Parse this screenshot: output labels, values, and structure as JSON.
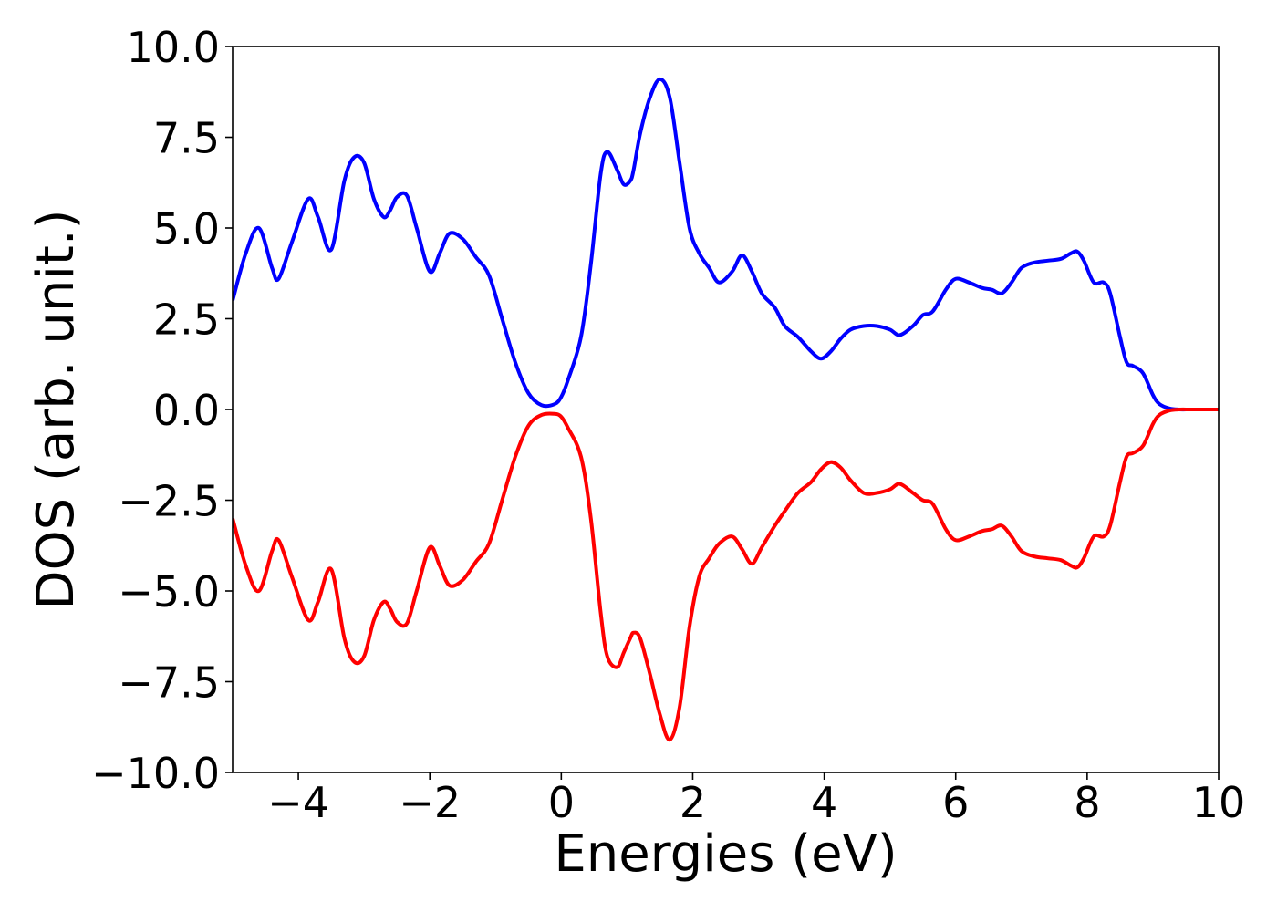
{
  "chart_data": {
    "type": "line",
    "title": "",
    "xlabel": "Energies (eV)",
    "ylabel": "DOS (arb. unit.)",
    "xlim": [
      -5,
      10
    ],
    "ylim": [
      -10,
      10
    ],
    "grid": false,
    "xticks": [
      -4,
      -2,
      0,
      2,
      4,
      6,
      8,
      10
    ],
    "yticks": [
      10,
      7.5,
      5,
      2.5,
      0,
      -2.5,
      -5,
      -7.5,
      -10
    ],
    "xtick_labels": [
      "−4",
      "−2",
      "0",
      "2",
      "4",
      "6",
      "8",
      "10"
    ],
    "ytick_labels": [
      "10.0",
      "7.5",
      "5.0",
      "2.5",
      "0.0",
      "−2.5",
      "−5.0",
      "−7.5",
      "−10.0"
    ],
    "series": [
      {
        "color": "#0000ff",
        "x": [
          -5.0,
          -4.8,
          -4.6,
          -4.4,
          -4.3,
          -4.1,
          -3.85,
          -3.7,
          -3.5,
          -3.3,
          -3.15,
          -3.0,
          -2.85,
          -2.7,
          -2.6,
          -2.5,
          -2.35,
          -2.2,
          -2.0,
          -1.85,
          -1.7,
          -1.5,
          -1.3,
          -1.1,
          -0.9,
          -0.7,
          -0.5,
          -0.3,
          -0.1,
          0.0,
          0.1,
          0.3,
          0.45,
          0.6,
          0.7,
          0.85,
          0.95,
          1.05,
          1.1,
          1.2,
          1.35,
          1.5,
          1.65,
          1.8,
          1.95,
          2.1,
          2.25,
          2.4,
          2.6,
          2.75,
          2.9,
          3.05,
          3.25,
          3.4,
          3.6,
          3.8,
          3.95,
          4.1,
          4.25,
          4.4,
          4.6,
          4.8,
          5.0,
          5.15,
          5.35,
          5.5,
          5.65,
          5.85,
          6.0,
          6.2,
          6.4,
          6.55,
          6.7,
          6.85,
          7.0,
          7.2,
          7.4,
          7.6,
          7.75,
          7.85,
          7.95,
          8.1,
          8.25,
          8.35,
          8.5,
          8.6,
          8.7,
          8.85,
          9.0,
          9.1,
          9.25,
          9.4,
          9.6,
          10.0
        ],
        "y": [
          3.0,
          4.3,
          5.0,
          3.9,
          3.6,
          4.6,
          5.8,
          5.3,
          4.4,
          6.3,
          6.95,
          6.8,
          5.8,
          5.3,
          5.5,
          5.85,
          5.9,
          5.0,
          3.8,
          4.3,
          4.85,
          4.7,
          4.2,
          3.7,
          2.5,
          1.3,
          0.45,
          0.12,
          0.15,
          0.35,
          0.8,
          2.0,
          4.0,
          6.5,
          7.1,
          6.6,
          6.2,
          6.3,
          6.6,
          7.6,
          8.6,
          9.1,
          8.6,
          6.8,
          5.0,
          4.3,
          3.9,
          3.5,
          3.8,
          4.25,
          3.8,
          3.2,
          2.8,
          2.3,
          2.0,
          1.6,
          1.4,
          1.6,
          1.95,
          2.2,
          2.3,
          2.3,
          2.2,
          2.05,
          2.3,
          2.6,
          2.7,
          3.3,
          3.6,
          3.5,
          3.35,
          3.3,
          3.2,
          3.5,
          3.9,
          4.05,
          4.1,
          4.15,
          4.3,
          4.35,
          4.1,
          3.5,
          3.5,
          3.2,
          2.0,
          1.3,
          1.2,
          1.0,
          0.4,
          0.15,
          0.03,
          0.0,
          0.0,
          0.0
        ]
      },
      {
        "color": "#ff0000",
        "x": [
          -5.0,
          -4.8,
          -4.6,
          -4.4,
          -4.3,
          -4.1,
          -3.85,
          -3.7,
          -3.5,
          -3.3,
          -3.15,
          -3.0,
          -2.85,
          -2.7,
          -2.6,
          -2.5,
          -2.35,
          -2.2,
          -2.0,
          -1.85,
          -1.7,
          -1.5,
          -1.3,
          -1.1,
          -0.9,
          -0.7,
          -0.5,
          -0.3,
          -0.1,
          0.0,
          0.1,
          0.3,
          0.45,
          0.6,
          0.7,
          0.85,
          0.95,
          1.05,
          1.1,
          1.2,
          1.35,
          1.5,
          1.65,
          1.8,
          1.95,
          2.1,
          2.25,
          2.4,
          2.6,
          2.75,
          2.9,
          3.05,
          3.25,
          3.4,
          3.6,
          3.8,
          3.95,
          4.1,
          4.25,
          4.4,
          4.6,
          4.8,
          5.0,
          5.15,
          5.35,
          5.5,
          5.65,
          5.85,
          6.0,
          6.2,
          6.4,
          6.55,
          6.7,
          6.85,
          7.0,
          7.2,
          7.4,
          7.6,
          7.75,
          7.85,
          7.95,
          8.1,
          8.25,
          8.35,
          8.5,
          8.6,
          8.7,
          8.85,
          9.0,
          9.1,
          9.25,
          9.4,
          9.6,
          10.0
        ],
        "y": [
          -3.0,
          -4.3,
          -5.0,
          -3.9,
          -3.6,
          -4.6,
          -5.8,
          -5.3,
          -4.4,
          -6.3,
          -6.95,
          -6.8,
          -5.8,
          -5.3,
          -5.5,
          -5.85,
          -5.9,
          -5.0,
          -3.8,
          -4.3,
          -4.85,
          -4.7,
          -4.2,
          -3.7,
          -2.5,
          -1.3,
          -0.45,
          -0.15,
          -0.12,
          -0.2,
          -0.5,
          -1.3,
          -3.0,
          -5.6,
          -6.8,
          -7.1,
          -6.7,
          -6.3,
          -6.15,
          -6.3,
          -7.3,
          -8.4,
          -9.1,
          -8.2,
          -6.0,
          -4.6,
          -4.1,
          -3.7,
          -3.5,
          -3.85,
          -4.25,
          -3.8,
          -3.2,
          -2.8,
          -2.3,
          -2.0,
          -1.65,
          -1.45,
          -1.6,
          -1.95,
          -2.3,
          -2.3,
          -2.2,
          -2.05,
          -2.3,
          -2.5,
          -2.6,
          -3.3,
          -3.6,
          -3.5,
          -3.35,
          -3.3,
          -3.2,
          -3.5,
          -3.9,
          -4.05,
          -4.1,
          -4.15,
          -4.3,
          -4.35,
          -4.1,
          -3.5,
          -3.5,
          -3.2,
          -2.0,
          -1.3,
          -1.2,
          -1.0,
          -0.4,
          -0.15,
          -0.03,
          0.0,
          0.0,
          0.0
        ]
      }
    ]
  }
}
